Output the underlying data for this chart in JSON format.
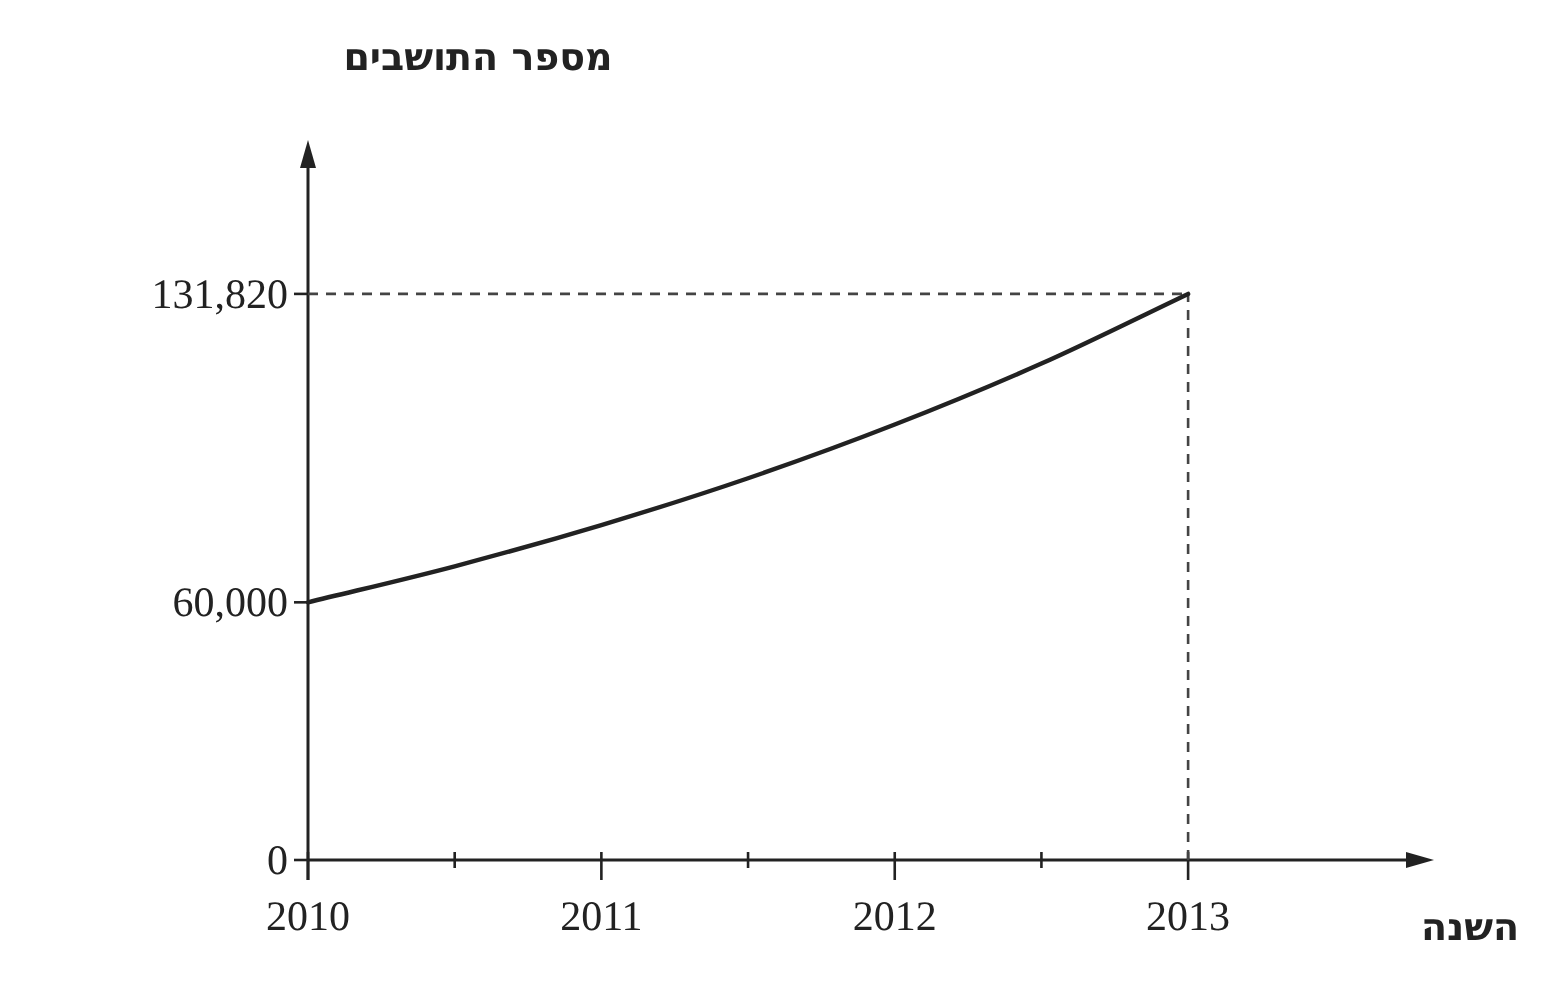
{
  "chart_data": {
    "type": "line",
    "xlabel": "השנה",
    "ylabel": "מספר התושבים",
    "x": [
      2010,
      2010.5,
      2011,
      2011.5,
      2012,
      2012.5,
      2013
    ],
    "series": [
      {
        "color": "#222222",
        "values": [
          60000,
          68400,
          78000,
          88900,
          101400,
          115600,
          131820
        ]
      }
    ],
    "xlim": [
      2010,
      2013.77
    ],
    "ylim": [
      0,
      163000
    ],
    "xticks": [
      2010,
      {
        "value": 2010.5,
        "label": null
      },
      2011,
      {
        "value": 2011.5,
        "label": null
      },
      2012,
      {
        "value": 2012.5,
        "label": null
      },
      2013
    ],
    "yticks": [
      0,
      {
        "value": 60000,
        "label": "60,000"
      },
      {
        "value": 131820,
        "label": "131,820"
      }
    ],
    "ref_lines": [
      {
        "axis": "y",
        "value": 131820,
        "line_style": "dashed",
        "color": "#444444"
      },
      {
        "axis": "x",
        "value": 2013,
        "line_style": "dashed",
        "color": "#444444"
      }
    ],
    "grid": false,
    "marker": "none",
    "line_style": "solid"
  }
}
